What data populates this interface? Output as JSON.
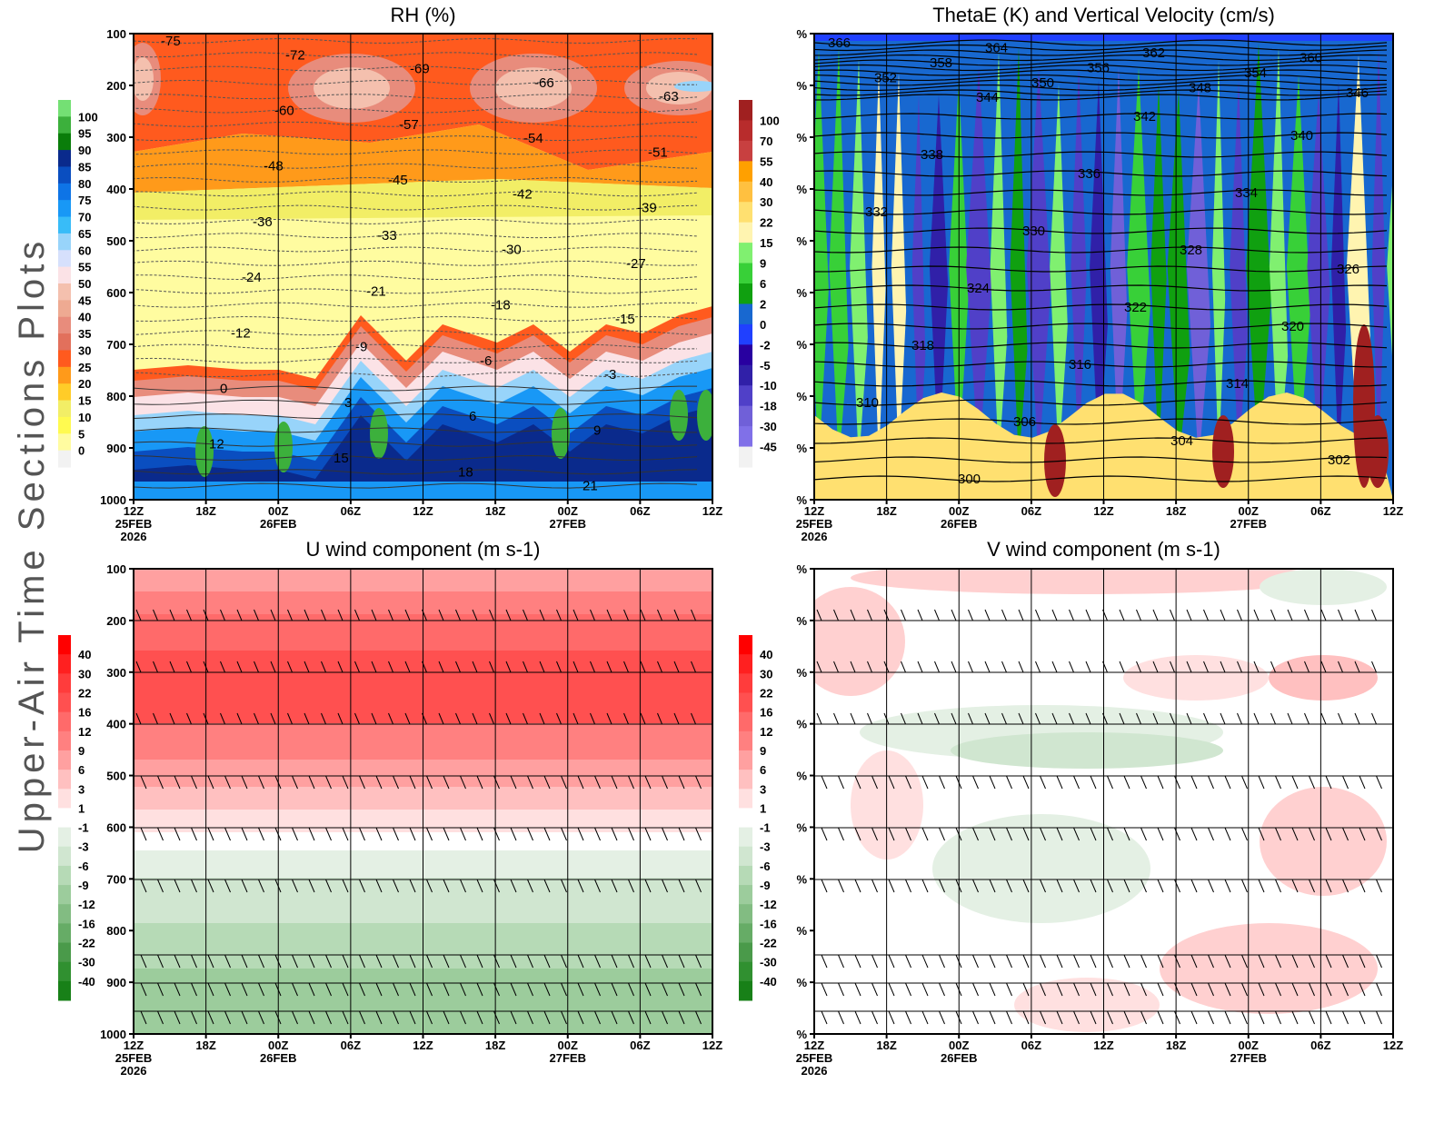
{
  "page": {
    "side_title": "Upper-Air Time Sections Plots"
  },
  "time_axis": {
    "ticks": [
      "12Z",
      "18Z",
      "00Z",
      "06Z",
      "12Z",
      "18Z",
      "00Z",
      "06Z",
      "12Z"
    ],
    "date_labels": [
      {
        "tick_index": 0,
        "lines": [
          "25FEB",
          "2026"
        ]
      },
      {
        "tick_index": 2,
        "lines": [
          "26FEB"
        ]
      },
      {
        "tick_index": 6,
        "lines": [
          "27FEB"
        ]
      }
    ]
  },
  "chart_data": [
    {
      "id": "rh",
      "type": "heatmap",
      "title": "RH (%)",
      "xlabel": "",
      "ylabel": "",
      "y_ticks": [
        "100",
        "200",
        "300",
        "400",
        "500",
        "600",
        "700",
        "800",
        "900",
        "1000"
      ],
      "ylim": [
        1000,
        100
      ],
      "colorbar": {
        "labels": [
          "100",
          "95",
          "90",
          "85",
          "80",
          "75",
          "70",
          "65",
          "60",
          "55",
          "50",
          "45",
          "40",
          "35",
          "30",
          "25",
          "20",
          "15",
          "10",
          "5",
          "0"
        ],
        "colors": [
          "#74e074",
          "#3cb03c",
          "#0a7d0a",
          "#0a2a8c",
          "#0a4ec0",
          "#0e74e6",
          "#1898f6",
          "#38bcf8",
          "#98d4fa",
          "#d6e0fc",
          "#fbe2e6",
          "#f4c0ae",
          "#eeaa92",
          "#e88c7c",
          "#e2705c",
          "#ff5a1e",
          "#ff9a1a",
          "#ffcc28",
          "#f2ee66",
          "#fffa50",
          "#fffca0",
          "#f2f2f2"
        ]
      },
      "contour_labels": [
        "-75",
        "-72",
        "-69",
        "-66",
        "-63",
        "-60",
        "-57",
        "-54",
        "-51",
        "-48",
        "-45",
        "-42",
        "-39",
        "-36",
        "-33",
        "-30",
        "-27",
        "-24",
        "-21",
        "-18",
        "-15",
        "-12",
        "-9",
        "-6",
        "-3",
        "0",
        "3",
        "6",
        "9",
        "12",
        "15",
        "18",
        "21"
      ],
      "grid": true
    },
    {
      "id": "thetae",
      "type": "heatmap",
      "title": "ThetaE (K) and Vertical Velocity (cm/s)",
      "xlabel": "",
      "ylabel": "",
      "y_ticks": [
        "%",
        "%",
        "%",
        "%",
        "%",
        "%",
        "%",
        "%",
        "%",
        "%"
      ],
      "colorbar": {
        "labels": [
          "100",
          "70",
          "55",
          "40",
          "30",
          "22",
          "15",
          "9",
          "6",
          "2",
          "0",
          "-2",
          "-5",
          "-10",
          "-18",
          "-30",
          "-45"
        ],
        "colors": [
          "#a02020",
          "#b82c2c",
          "#c84040",
          "#ffa000",
          "#ffc040",
          "#ffe070",
          "#fff4b0",
          "#80f070",
          "#38d038",
          "#10a010",
          "#1868d0",
          "#2040ff",
          "#2800a0",
          "#3020a8",
          "#5040c8",
          "#7060d8",
          "#8070e8",
          "#f2f2f2"
        ]
      },
      "contour_labels": [
        "366",
        "364",
        "362",
        "360",
        "358",
        "356",
        "354",
        "352",
        "350",
        "348",
        "346",
        "344",
        "342",
        "340",
        "338",
        "336",
        "334",
        "332",
        "330",
        "328",
        "326",
        "324",
        "322",
        "320",
        "318",
        "316",
        "314",
        "310",
        "306",
        "304",
        "302",
        "300"
      ],
      "grid": true
    },
    {
      "id": "u-wind",
      "type": "heatmap",
      "title": "U wind component (m s-1)",
      "xlabel": "",
      "ylabel": "",
      "y_ticks": [
        "100",
        "200",
        "300",
        "400",
        "500",
        "600",
        "700",
        "800",
        "900",
        "1000"
      ],
      "ylim": [
        1000,
        100
      ],
      "colorbar": {
        "labels": [
          "40",
          "30",
          "22",
          "16",
          "12",
          "9",
          "6",
          "3",
          "1",
          "-1",
          "-3",
          "-6",
          "-9",
          "-12",
          "-16",
          "-22",
          "-30",
          "-40"
        ],
        "colors": [
          "#ff0000",
          "#ff2020",
          "#ff3c3c",
          "#ff5050",
          "#ff6a6a",
          "#ff8080",
          "#ffa0a0",
          "#ffc0c0",
          "#ffe0e0",
          "#ffffff",
          "#e4f0e4",
          "#d0e6d0",
          "#b6dab6",
          "#9ccc9c",
          "#82bc82",
          "#66ac66",
          "#4a9a4a",
          "#309030",
          "#188018"
        ]
      },
      "band_levels": [
        "100",
        "200",
        "300",
        "400",
        "500",
        "600",
        "700",
        "850",
        "925",
        "975"
      ],
      "grid": true
    },
    {
      "id": "v-wind",
      "type": "heatmap",
      "title": "V wind component (m s-1)",
      "xlabel": "",
      "ylabel": "",
      "y_ticks": [
        "%",
        "%",
        "%",
        "%",
        "%",
        "%",
        "%",
        "%",
        "%",
        "%"
      ],
      "colorbar": {
        "labels": [
          "40",
          "30",
          "22",
          "16",
          "12",
          "9",
          "6",
          "3",
          "1",
          "-1",
          "-3",
          "-6",
          "-9",
          "-12",
          "-16",
          "-22",
          "-30",
          "-40"
        ],
        "colors": [
          "#ff0000",
          "#ff2020",
          "#ff3c3c",
          "#ff5050",
          "#ff6a6a",
          "#ff8080",
          "#ffa0a0",
          "#ffc0c0",
          "#ffe0e0",
          "#ffffff",
          "#e4f0e4",
          "#d0e6d0",
          "#b6dab6",
          "#9ccc9c",
          "#82bc82",
          "#66ac66",
          "#4a9a4a",
          "#309030",
          "#188018"
        ]
      },
      "grid": true
    }
  ]
}
